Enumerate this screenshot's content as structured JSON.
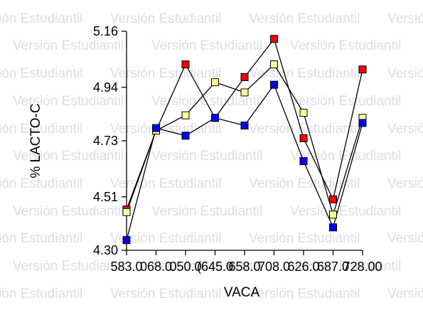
{
  "watermark": {
    "text": "Versión Estudiantil",
    "color": "#dcdce6"
  },
  "chart_data": {
    "type": "line",
    "title": "",
    "xlabel": "VACA",
    "ylabel": "% LACTO-C",
    "categories": [
      "583.00",
      "668.00",
      "650.00",
      "645.00",
      "658.00",
      "708.00",
      "626.00",
      "687.00",
      "728.00"
    ],
    "x_tick_labels": [
      "583.0",
      "068.0",
      "050.0",
      "(645.0",
      "658.0",
      "708.0",
      "626.0",
      "687.0",
      "728.00"
    ],
    "y_ticks": [
      4.3,
      4.51,
      4.73,
      4.94,
      5.16
    ],
    "y_tick_labels": [
      "4.30",
      "4.51",
      "4.73",
      "4.94",
      "5.16"
    ],
    "ylim": [
      4.3,
      5.16
    ],
    "grid": false,
    "legend": "none",
    "series": [
      {
        "color": "#ff0000",
        "values": [
          4.46,
          4.77,
          5.03,
          4.82,
          4.98,
          5.13,
          4.74,
          4.5,
          5.01
        ]
      },
      {
        "color": "#ffff99",
        "values": [
          4.45,
          4.77,
          4.83,
          4.96,
          4.92,
          5.03,
          4.84,
          4.44,
          4.82
        ]
      },
      {
        "color": "#0000ff",
        "values": [
          4.34,
          4.78,
          4.75,
          4.82,
          4.79,
          4.95,
          4.65,
          4.39,
          4.8
        ]
      }
    ]
  }
}
